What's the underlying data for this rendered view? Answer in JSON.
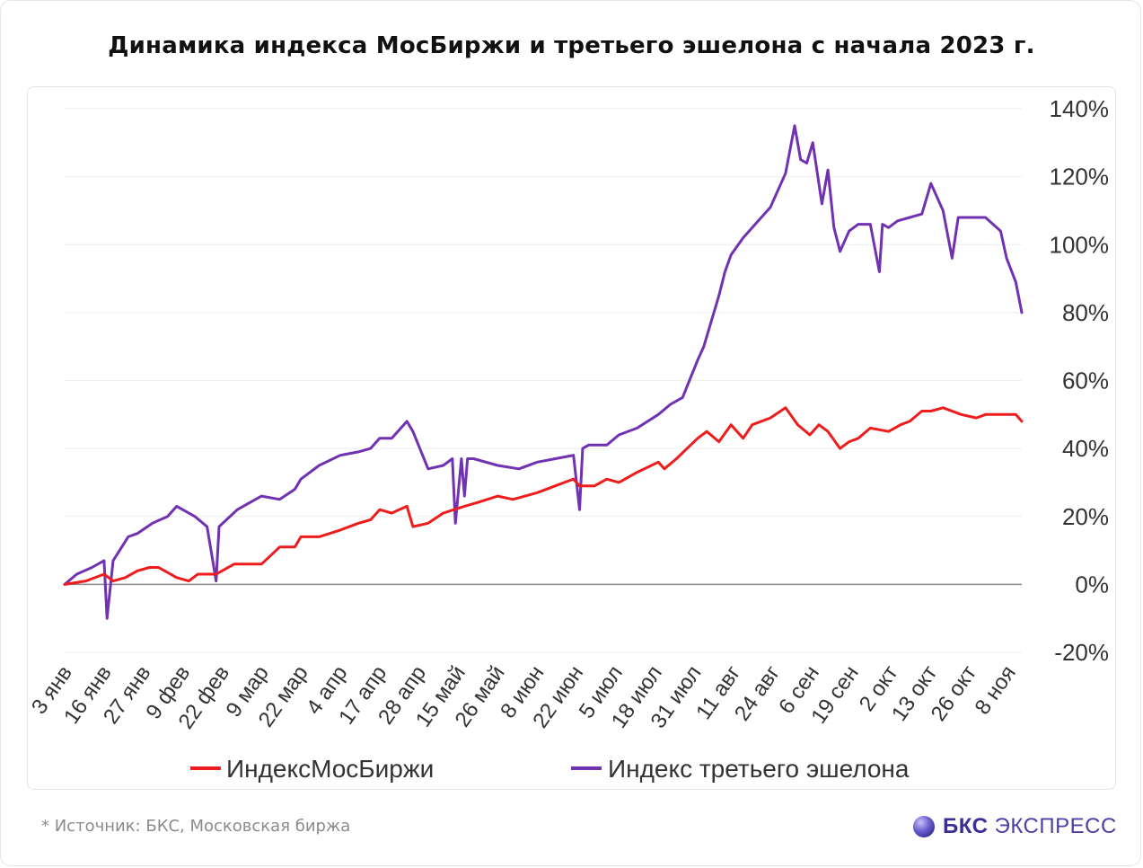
{
  "title": "Динамика индекса МосБиржи и третьего эшелона с начала 2023 г.",
  "source": "*  Источник: БКС, Московская биржа",
  "brand": {
    "bold": "БКС",
    "rest": "ЭКСПРЕСС",
    "icon": "bks-sphere-icon"
  },
  "colors": {
    "moex": "#ee1c1c",
    "third": "#7132b2",
    "zero_line": "#8c8c8c",
    "grid": "#eeeeee"
  },
  "chart_data": {
    "type": "line",
    "title": "Динамика индекса МосБиржи и третьего эшелона с начала 2023 г.",
    "xlabel": "",
    "ylabel": "",
    "ylim": [
      -20,
      140
    ],
    "y_ticks": [
      -20,
      0,
      20,
      40,
      60,
      80,
      100,
      120,
      140
    ],
    "y_tick_labels": [
      "-20%",
      "0%",
      "20%",
      "40%",
      "60%",
      "80%",
      "100%",
      "120%",
      "140%"
    ],
    "x_tick_labels": [
      "3 янв",
      "16 янв",
      "27 янв",
      "9 фев",
      "22 фев",
      "9 мар",
      "22 мар",
      "4 апр",
      "17 апр",
      "28 апр",
      "15 май",
      "26 май",
      "8 июн",
      "22 июн",
      "5 июл",
      "18 июл",
      "31 июл",
      "11 авг",
      "24 авг",
      "6 сен",
      "19 сен",
      "2 окт",
      "13 окт",
      "26 окт",
      "8 ноя"
    ],
    "grid": true,
    "legend_position": "bottom",
    "series": [
      {
        "name": "ИндексМосБиржи",
        "color": "#ee1c1c",
        "x": [
          "2023-01-03",
          "2023-01-10",
          "2023-01-16",
          "2023-01-19",
          "2023-01-23",
          "2023-01-27",
          "2023-01-31",
          "2023-02-03",
          "2023-02-09",
          "2023-02-13",
          "2023-02-16",
          "2023-02-22",
          "2023-02-28",
          "2023-03-03",
          "2023-03-09",
          "2023-03-15",
          "2023-03-20",
          "2023-03-22",
          "2023-03-28",
          "2023-04-04",
          "2023-04-10",
          "2023-04-14",
          "2023-04-17",
          "2023-04-21",
          "2023-04-26",
          "2023-04-28",
          "2023-05-03",
          "2023-05-08",
          "2023-05-15",
          "2023-05-19",
          "2023-05-26",
          "2023-05-31",
          "2023-06-08",
          "2023-06-14",
          "2023-06-20",
          "2023-06-22",
          "2023-06-27",
          "2023-07-01",
          "2023-07-05",
          "2023-07-11",
          "2023-07-18",
          "2023-07-20",
          "2023-07-24",
          "2023-07-31",
          "2023-08-03",
          "2023-08-07",
          "2023-08-11",
          "2023-08-15",
          "2023-08-18",
          "2023-08-24",
          "2023-08-29",
          "2023-09-02",
          "2023-09-06",
          "2023-09-09",
          "2023-09-12",
          "2023-09-16",
          "2023-09-19",
          "2023-09-22",
          "2023-09-26",
          "2023-10-02",
          "2023-10-06",
          "2023-10-09",
          "2023-10-13",
          "2023-10-16",
          "2023-10-20",
          "2023-10-26",
          "2023-10-31",
          "2023-11-03",
          "2023-11-08",
          "2023-11-13",
          "2023-11-15"
        ],
        "values": [
          0,
          1,
          3,
          1,
          2,
          4,
          5,
          5,
          2,
          1,
          3,
          3,
          6,
          6,
          6,
          11,
          11,
          14,
          14,
          16,
          18,
          19,
          22,
          21,
          23,
          17,
          18,
          21,
          23,
          24,
          26,
          25,
          27,
          29,
          31,
          29,
          29,
          31,
          30,
          33,
          36,
          34,
          37,
          43,
          45,
          42,
          47,
          43,
          47,
          49,
          52,
          47,
          44,
          47,
          45,
          40,
          42,
          43,
          46,
          45,
          47,
          48,
          51,
          51,
          52,
          50,
          49,
          50,
          50,
          50,
          48
        ]
      },
      {
        "name": "Индекс третьего эшелона",
        "color": "#7132b2",
        "x": [
          "2023-01-03",
          "2023-01-07",
          "2023-01-12",
          "2023-01-16",
          "2023-01-17",
          "2023-01-19",
          "2023-01-24",
          "2023-01-27",
          "2023-02-01",
          "2023-02-06",
          "2023-02-09",
          "2023-02-15",
          "2023-02-19",
          "2023-02-22",
          "2023-02-23",
          "2023-03-01",
          "2023-03-05",
          "2023-03-09",
          "2023-03-15",
          "2023-03-20",
          "2023-03-22",
          "2023-03-28",
          "2023-04-04",
          "2023-04-10",
          "2023-04-14",
          "2023-04-17",
          "2023-04-21",
          "2023-04-26",
          "2023-04-28",
          "2023-05-03",
          "2023-05-08",
          "2023-05-11",
          "2023-05-12",
          "2023-05-14",
          "2023-05-15",
          "2023-05-16",
          "2023-05-18",
          "2023-05-26",
          "2023-06-02",
          "2023-06-08",
          "2023-06-14",
          "2023-06-20",
          "2023-06-22",
          "2023-06-23",
          "2023-06-25",
          "2023-07-01",
          "2023-07-05",
          "2023-07-11",
          "2023-07-18",
          "2023-07-22",
          "2023-07-26",
          "2023-07-31",
          "2023-08-02",
          "2023-08-07",
          "2023-08-09",
          "2023-08-11",
          "2023-08-15",
          "2023-08-20",
          "2023-08-24",
          "2023-08-29",
          "2023-09-01",
          "2023-09-03",
          "2023-09-05",
          "2023-09-07",
          "2023-09-10",
          "2023-09-12",
          "2023-09-14",
          "2023-09-16",
          "2023-09-19",
          "2023-09-22",
          "2023-09-26",
          "2023-09-29",
          "2023-09-30",
          "2023-10-02",
          "2023-10-05",
          "2023-10-09",
          "2023-10-13",
          "2023-10-16",
          "2023-10-20",
          "2023-10-23",
          "2023-10-25",
          "2023-10-26",
          "2023-10-28",
          "2023-10-31",
          "2023-11-03",
          "2023-11-08",
          "2023-11-10",
          "2023-11-13",
          "2023-11-15"
        ],
        "values": [
          0,
          3,
          5,
          7,
          -10,
          7,
          14,
          15,
          18,
          20,
          23,
          20,
          17,
          1,
          17,
          22,
          24,
          26,
          25,
          28,
          31,
          35,
          38,
          39,
          40,
          43,
          43,
          48,
          45,
          34,
          35,
          37,
          18,
          37,
          26,
          37,
          37,
          35,
          34,
          36,
          37,
          38,
          22,
          40,
          41,
          41,
          44,
          46,
          50,
          53,
          55,
          66,
          70,
          85,
          92,
          97,
          102,
          107,
          111,
          121,
          135,
          125,
          124,
          130,
          112,
          122,
          105,
          98,
          104,
          106,
          106,
          92,
          106,
          105,
          107,
          108,
          109,
          118,
          110,
          96,
          108,
          108,
          108,
          108,
          108,
          104,
          96,
          89,
          80
        ]
      }
    ]
  }
}
